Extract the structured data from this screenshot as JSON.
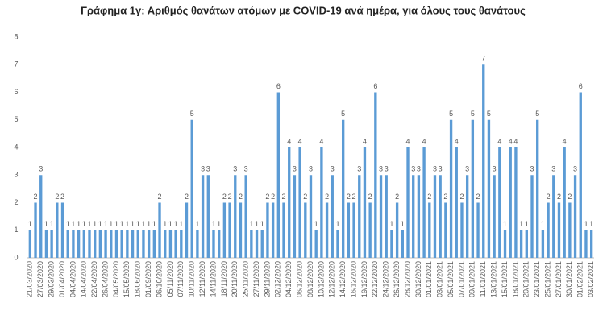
{
  "chart_data": {
    "type": "bar",
    "title": "Γράφημα 1γ: Αριθμός θανάτων ατόμων με COVID-19 ανά ημέρα, για όλους τους θανάτους",
    "color": "#5b9bd5",
    "ylim": [
      0,
      8
    ],
    "yticks": [
      0,
      1,
      2,
      3,
      4,
      5,
      6,
      7,
      8
    ],
    "grid": false,
    "categories": [
      "21/03/2020",
      null,
      "27/03/2020",
      null,
      "29/03/2020",
      null,
      "01/04/2020",
      null,
      "04/04/2020",
      null,
      "14/04/2020",
      null,
      "22/04/2020",
      null,
      "26/04/2020",
      null,
      "04/05/2020",
      null,
      "15/05/2020",
      null,
      "18/06/2020",
      null,
      "01/09/2020",
      null,
      "06/10/2020",
      null,
      "05/11/2020",
      null,
      "07/11/2020",
      null,
      "10/11/2020",
      null,
      "12/11/2020",
      null,
      "14/11/2020",
      null,
      "18/11/2020",
      null,
      "20/11/2020",
      null,
      "25/11/2020",
      null,
      "27/11/2020",
      null,
      "29/11/2020",
      null,
      "02/12/2020",
      null,
      "04/12/2020",
      null,
      "06/12/2020",
      null,
      "08/12/2020",
      null,
      "10/12/2020",
      null,
      "12/12/2020",
      null,
      "14/12/2020",
      null,
      "16/12/2020",
      null,
      "19/12/2020",
      null,
      "22/12/2020",
      null,
      "24/12/2020",
      null,
      "26/12/2020",
      null,
      "28/12/2020",
      null,
      "30/12/2020",
      null,
      "01/01/2021",
      null,
      "03/01/2021",
      null,
      "05/01/2021",
      null,
      "07/01/2021",
      null,
      "09/01/2021",
      null,
      "11/01/2021",
      null,
      "13/01/2021",
      null,
      "15/01/2021",
      null,
      "18/01/2021",
      null,
      "20/01/2021",
      null,
      "23/01/2021",
      null,
      "25/01/2021",
      null,
      "27/01/2021",
      null,
      "30/01/2021",
      null,
      "01/02/2021",
      null,
      "03/02/2021"
    ],
    "values": [
      1,
      2,
      3,
      1,
      1,
      2,
      2,
      1,
      1,
      1,
      1,
      1,
      1,
      1,
      1,
      1,
      1,
      1,
      1,
      1,
      1,
      1,
      1,
      1,
      2,
      1,
      1,
      1,
      1,
      2,
      5,
      1,
      3,
      3,
      1,
      1,
      2,
      2,
      3,
      2,
      3,
      1,
      1,
      1,
      2,
      2,
      6,
      2,
      4,
      3,
      4,
      2,
      3,
      1,
      4,
      2,
      3,
      1,
      5,
      2,
      2,
      3,
      4,
      2,
      6,
      3,
      3,
      1,
      2,
      1,
      4,
      3,
      3,
      4,
      2,
      3,
      3,
      2,
      5,
      4,
      2,
      3,
      5,
      2,
      7,
      5,
      3,
      4,
      1,
      4,
      4,
      1,
      1,
      3,
      5,
      1,
      2,
      3,
      2,
      4,
      2,
      3,
      6,
      1,
      1
    ]
  }
}
